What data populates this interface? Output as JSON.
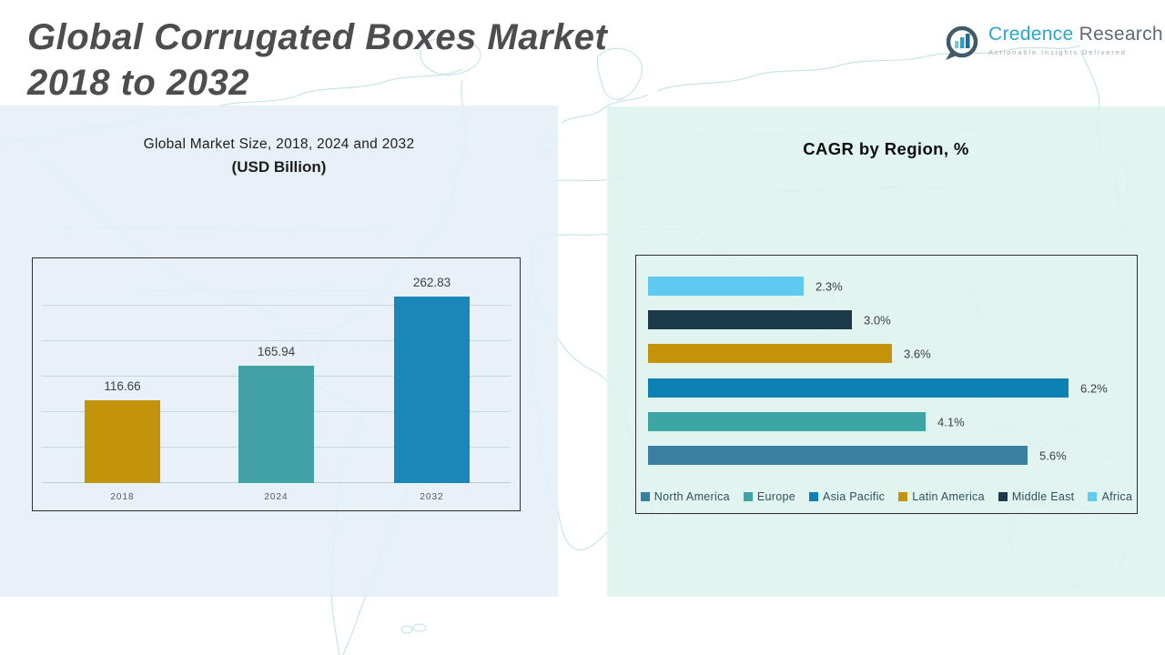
{
  "header": {
    "title_line1": "Global Corrugated Boxes Market",
    "title_line2": "2018 to 2032",
    "logo": {
      "brand_primary": "Credence",
      "brand_secondary": "Research",
      "tagline": "Actionable Insights Delivered",
      "brand_primary_color": "#2ba7cb",
      "brand_secondary_color": "#5d6c77"
    }
  },
  "chart_data": [
    {
      "type": "bar",
      "title": "Global Market Size, 2018, 2024 and 2032",
      "subtitle": "(USD Billion)",
      "categories": [
        "2018",
        "2024",
        "2032"
      ],
      "values": [
        116.66,
        165.94,
        262.83
      ],
      "labels": [
        "116.66",
        "165.94",
        "262.83"
      ],
      "bar_colors": [
        "#C3930A",
        "#43A2A6",
        "#1987B8"
      ],
      "ylim": [
        0,
        320
      ],
      "grid": {
        "step": 50,
        "max": 250
      },
      "legend_position": "none"
    },
    {
      "type": "bar-horizontal",
      "title": "CAGR by Region, %",
      "categories": [
        "Africa",
        "Middle East",
        "Latin America",
        "Asia Pacific",
        "Europe",
        "North America"
      ],
      "values": [
        2.3,
        3.0,
        3.6,
        6.2,
        4.1,
        5.6
      ],
      "labels": [
        "2.3%",
        "3.0%",
        "3.6%",
        "6.2%",
        "4.1%",
        "5.6%"
      ],
      "bar_colors": [
        "#5FC9F2",
        "#1C3A4A",
        "#C3930A",
        "#0E81B4",
        "#3DA5A4",
        "#3A7FA0"
      ],
      "xlim": [
        0,
        7.2
      ],
      "legend_position": "bottom",
      "legend": [
        {
          "label": "North America",
          "color": "#3A7FA0"
        },
        {
          "label": "Europe",
          "color": "#3DA5A4"
        },
        {
          "label": "Asia Pacific",
          "color": "#0E81B4"
        },
        {
          "label": "Latin America",
          "color": "#C3930A"
        },
        {
          "label": "Middle East",
          "color": "#1C3A4A"
        },
        {
          "label": "Africa",
          "color": "#5FC9F2"
        }
      ]
    }
  ]
}
